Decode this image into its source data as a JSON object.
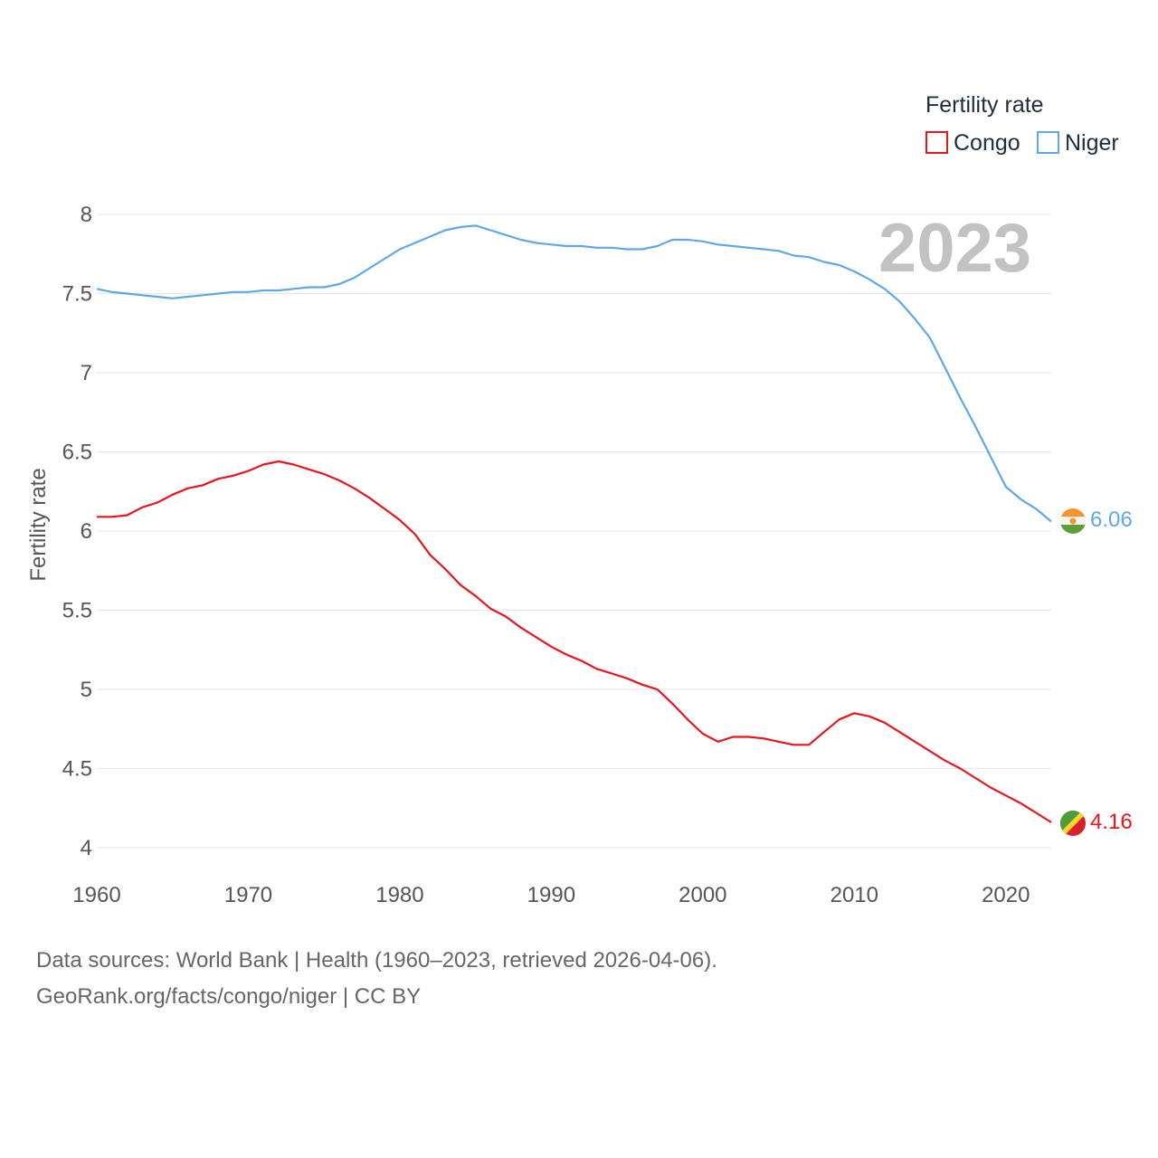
{
  "chart_data": {
    "type": "line",
    "ylabel": "Fertility rate",
    "xlabel": "",
    "xlim": [
      1960,
      2023
    ],
    "ylim": [
      4,
      8
    ],
    "x_ticks": [
      1960,
      1970,
      1980,
      1990,
      2000,
      2010,
      2020
    ],
    "y_ticks": [
      4,
      4.5,
      5,
      5.5,
      6,
      6.5,
      7,
      7.5,
      8
    ],
    "y_tick_labels": [
      "4",
      "4.5",
      "5",
      "5.5",
      "6",
      "6.5",
      "7",
      "7.5",
      "8"
    ],
    "grid": true,
    "year_display": "2023",
    "legend": {
      "title": "Fertility rate",
      "position": "top-right",
      "items": [
        "Congo",
        "Niger"
      ]
    },
    "x": [
      1960,
      1961,
      1962,
      1963,
      1964,
      1965,
      1966,
      1967,
      1968,
      1969,
      1970,
      1971,
      1972,
      1973,
      1974,
      1975,
      1976,
      1977,
      1978,
      1979,
      1980,
      1981,
      1982,
      1983,
      1984,
      1985,
      1986,
      1987,
      1988,
      1989,
      1990,
      1991,
      1992,
      1993,
      1994,
      1995,
      1996,
      1997,
      1998,
      1999,
      2000,
      2001,
      2002,
      2003,
      2004,
      2005,
      2006,
      2007,
      2008,
      2009,
      2010,
      2011,
      2012,
      2013,
      2014,
      2015,
      2016,
      2017,
      2018,
      2019,
      2020,
      2021,
      2022,
      2023
    ],
    "series": [
      {
        "name": "Congo",
        "color": "#e8141e",
        "end_label": "4.16",
        "values": [
          6.09,
          6.09,
          6.1,
          6.15,
          6.18,
          6.23,
          6.27,
          6.29,
          6.33,
          6.35,
          6.38,
          6.42,
          6.44,
          6.42,
          6.39,
          6.36,
          6.32,
          6.27,
          6.21,
          6.14,
          6.07,
          5.98,
          5.85,
          5.76,
          5.66,
          5.59,
          5.51,
          5.46,
          5.39,
          5.33,
          5.27,
          5.22,
          5.18,
          5.13,
          5.1,
          5.07,
          5.03,
          5.0,
          4.91,
          4.81,
          4.72,
          4.67,
          4.7,
          4.7,
          4.69,
          4.67,
          4.65,
          4.65,
          4.73,
          4.81,
          4.85,
          4.83,
          4.79,
          4.73,
          4.67,
          4.61,
          4.55,
          4.5,
          4.44,
          4.38,
          4.33,
          4.28,
          4.22,
          4.16
        ]
      },
      {
        "name": "Niger",
        "color": "#5ea7e8",
        "end_label": "6.06",
        "values": [
          7.53,
          7.51,
          7.5,
          7.49,
          7.48,
          7.47,
          7.48,
          7.49,
          7.5,
          7.51,
          7.51,
          7.52,
          7.52,
          7.53,
          7.54,
          7.54,
          7.56,
          7.6,
          7.66,
          7.72,
          7.78,
          7.82,
          7.86,
          7.9,
          7.92,
          7.93,
          7.9,
          7.87,
          7.84,
          7.82,
          7.81,
          7.8,
          7.8,
          7.79,
          7.79,
          7.78,
          7.78,
          7.8,
          7.84,
          7.84,
          7.83,
          7.81,
          7.8,
          7.79,
          7.78,
          7.77,
          7.74,
          7.73,
          7.7,
          7.68,
          7.64,
          7.59,
          7.53,
          7.45,
          7.34,
          7.22,
          7.03,
          6.84,
          6.66,
          6.47,
          6.28,
          6.2,
          6.14,
          6.06
        ]
      }
    ]
  },
  "footer": {
    "line1": "Data sources: World Bank | Health (1960–2023, retrieved 2026-04-06).",
    "line2": "GeoRank.org/facts/congo/niger | CC BY"
  }
}
